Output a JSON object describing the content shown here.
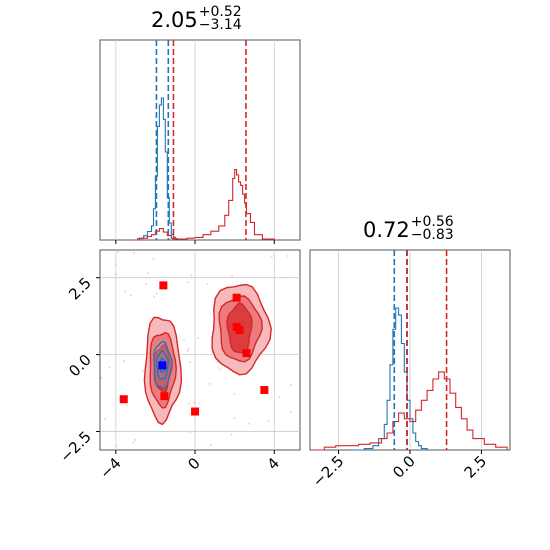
{
  "titles": {
    "param1": {
      "median": "2.05",
      "plus": "+0.52",
      "minus": "−3.14"
    },
    "param2": {
      "median": "0.72",
      "plus": "+0.56",
      "minus": "−0.83"
    }
  },
  "colors": {
    "blue": "#1f77b4",
    "red": "#d62728",
    "marker_red": "#ff0000",
    "marker_blue": "#0000ff",
    "grid": "#cccccc"
  },
  "chart_data": {
    "type": "corner",
    "panels": [
      {
        "id": "hist-param1",
        "type": "histogram",
        "xlim": [
          -4.8,
          5.3
        ],
        "x_ticks": [
          -4,
          0,
          4
        ],
        "quantile_lines": {
          "blue": [
            -1.95,
            -1.35
          ],
          "red": [
            -1.09,
            2.57
          ]
        },
        "blue_hist": {
          "x": [
            -3.2,
            -2.9,
            -2.6,
            -2.4,
            -2.2,
            -2.1,
            -2.0,
            -1.9,
            -1.8,
            -1.7,
            -1.6,
            -1.5,
            -1.4,
            -1.3,
            -1.2,
            -1.1,
            -1.0,
            -0.9
          ],
          "y": [
            0.0,
            0.01,
            0.03,
            0.06,
            0.1,
            0.22,
            0.45,
            0.8,
            0.95,
            1.0,
            0.85,
            0.62,
            0.3,
            0.12,
            0.04,
            0.02,
            0.01,
            0.0
          ]
        },
        "red_hist": {
          "x": [
            -3.2,
            -2.8,
            -2.4,
            -2.2,
            -2.0,
            -1.8,
            -1.6,
            -1.4,
            -1.2,
            -1.0,
            -0.8,
            -0.4,
            0.0,
            0.4,
            0.8,
            1.2,
            1.5,
            1.7,
            1.9,
            2.0,
            2.1,
            2.2,
            2.3,
            2.4,
            2.5,
            2.6,
            2.8,
            3.0,
            3.4,
            4.0
          ],
          "y": [
            0.0,
            0.02,
            0.04,
            0.06,
            0.1,
            0.13,
            0.09,
            0.05,
            0.02,
            0.01,
            0.01,
            0.02,
            0.03,
            0.06,
            0.1,
            0.16,
            0.28,
            0.45,
            0.7,
            0.8,
            0.74,
            0.66,
            0.62,
            0.52,
            0.42,
            0.3,
            0.2,
            0.06,
            0.01,
            0.0
          ]
        }
      },
      {
        "id": "hist-param2",
        "type": "histogram",
        "xlim": [
          -3.5,
          3.5
        ],
        "x_ticks": [
          -2.5,
          0.0,
          2.5
        ],
        "quantile_lines": {
          "blue": [
            -0.55,
            -0.1
          ],
          "red": [
            -0.11,
            1.28
          ]
        },
        "blue_hist": {
          "x": [
            -2.0,
            -1.6,
            -1.3,
            -1.1,
            -0.9,
            -0.8,
            -0.7,
            -0.6,
            -0.5,
            -0.4,
            -0.3,
            -0.2,
            -0.1,
            0.0,
            0.1,
            0.2,
            0.3,
            0.4,
            0.6
          ],
          "y": [
            0.0,
            0.01,
            0.03,
            0.08,
            0.18,
            0.35,
            0.6,
            0.85,
            1.0,
            0.95,
            0.75,
            0.55,
            0.35,
            0.22,
            0.12,
            0.06,
            0.03,
            0.01,
            0.0
          ]
        },
        "red_hist": {
          "x": [
            -3.4,
            -3.0,
            -2.6,
            -2.2,
            -1.8,
            -1.4,
            -1.0,
            -0.8,
            -0.6,
            -0.4,
            -0.2,
            0.0,
            0.2,
            0.4,
            0.6,
            0.8,
            1.0,
            1.2,
            1.4,
            1.6,
            1.8,
            2.0,
            2.2,
            2.6,
            3.0,
            3.4
          ],
          "y": [
            0.0,
            0.02,
            0.03,
            0.03,
            0.04,
            0.05,
            0.08,
            0.12,
            0.2,
            0.26,
            0.22,
            0.2,
            0.28,
            0.35,
            0.42,
            0.5,
            0.55,
            0.5,
            0.4,
            0.3,
            0.22,
            0.14,
            0.08,
            0.04,
            0.02,
            0.0
          ]
        }
      },
      {
        "id": "scatter-2d",
        "type": "contour_scatter",
        "xlim": [
          -4.8,
          5.3
        ],
        "ylim": [
          -3.1,
          3.4
        ],
        "x_ticks": [
          -4,
          0,
          4
        ],
        "y_ticks": [
          2.5,
          0.0,
          -2.5
        ],
        "blobs": [
          {
            "color": "red",
            "center": [
              -1.65,
              -0.45
            ],
            "levels": [
              [
                0.9,
                1.7
              ],
              [
                0.65,
                1.2
              ],
              [
                0.4,
                0.75
              ]
            ]
          },
          {
            "color": "red",
            "center": [
              2.25,
              0.85
            ],
            "levels": [
              [
                1.45,
                1.45
              ],
              [
                1.05,
                1.05
              ],
              [
                0.6,
                0.8
              ]
            ]
          },
          {
            "color": "blue",
            "center": [
              -1.65,
              -0.35
            ],
            "levels": [
              [
                0.45,
                0.75
              ],
              [
                0.28,
                0.45
              ],
              [
                0.14,
                0.22
              ]
            ]
          }
        ],
        "red_markers": [
          [
            -1.6,
            2.25
          ],
          [
            2.1,
            1.85
          ],
          [
            2.1,
            0.9
          ],
          [
            2.25,
            0.8
          ],
          [
            2.6,
            0.05
          ],
          [
            3.5,
            -1.15
          ],
          [
            -3.6,
            -1.45
          ],
          [
            -1.55,
            -1.35
          ],
          [
            0.0,
            -1.85
          ]
        ],
        "blue_markers": [
          [
            -1.65,
            -0.35
          ]
        ]
      }
    ]
  }
}
